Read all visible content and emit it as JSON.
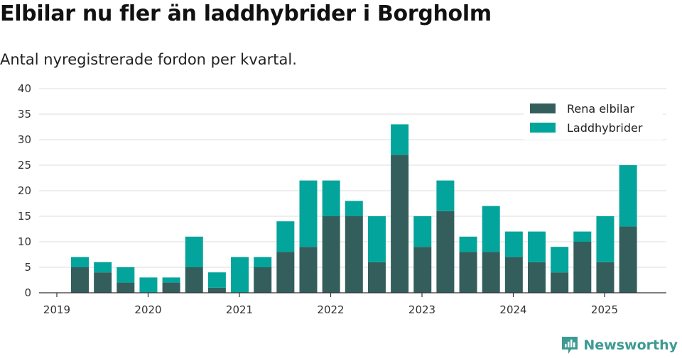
{
  "title": "Elbilar nu fler än laddhybrider i Borgholm",
  "subtitle": "Antal nyregistrerade fordon per kvartal.",
  "brand": "Newsworthy",
  "colors": {
    "elbilar": "#335e5b",
    "laddhybrider": "#03a49b",
    "grid": "#dedede",
    "axis": "#333333",
    "brand": "#3d9a93"
  },
  "chart_data": {
    "type": "bar",
    "stacked": true,
    "categories": [
      "2019-Q2",
      "2019-Q3",
      "2019-Q4",
      "2020-Q1",
      "2020-Q2",
      "2020-Q3",
      "2020-Q4",
      "2021-Q1",
      "2021-Q2",
      "2021-Q3",
      "2021-Q4",
      "2022-Q1",
      "2022-Q2",
      "2022-Q3",
      "2022-Q4",
      "2023-Q1",
      "2023-Q2",
      "2023-Q3",
      "2023-Q4",
      "2024-Q1",
      "2024-Q2",
      "2024-Q3",
      "2024-Q4",
      "2025-Q1",
      "2025-Q2"
    ],
    "series": [
      {
        "name": "Rena elbilar",
        "values": [
          5,
          4,
          2,
          0,
          2,
          5,
          1,
          0,
          5,
          8,
          9,
          15,
          15,
          6,
          27,
          9,
          16,
          8,
          8,
          7,
          6,
          4,
          10,
          6,
          13
        ]
      },
      {
        "name": "Laddhybrider",
        "values": [
          2,
          2,
          3,
          3,
          1,
          6,
          3,
          7,
          2,
          6,
          13,
          7,
          3,
          9,
          6,
          6,
          6,
          3,
          9,
          5,
          6,
          5,
          2,
          9,
          12
        ]
      }
    ],
    "x_tick_labels": [
      "2019",
      "2020",
      "2021",
      "2022",
      "2023",
      "2024",
      "2025"
    ],
    "y_ticks": [
      0,
      5,
      10,
      15,
      20,
      25,
      30,
      35,
      40
    ],
    "ylim": [
      0,
      40
    ],
    "grid": true,
    "legend_position": "top-right"
  }
}
